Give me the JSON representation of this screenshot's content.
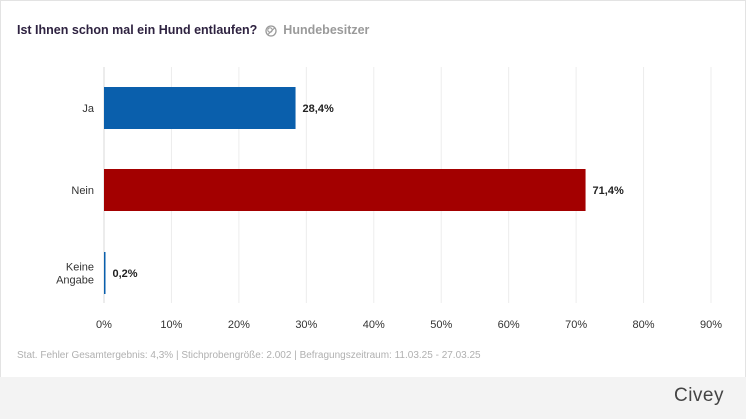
{
  "header": {
    "question": "Ist Ihnen schon mal ein Hund entlaufen?",
    "panel_icon": "panel-filter-icon",
    "panel_label": "Hundebesitzer"
  },
  "chart_data": {
    "type": "bar",
    "orientation": "horizontal",
    "title": "Ist Ihnen schon mal ein Hund entlaufen?",
    "categories": [
      "Ja",
      "Nein",
      "Keine Angabe"
    ],
    "category_lines": [
      [
        "Ja"
      ],
      [
        "Nein"
      ],
      [
        "Keine",
        "Angabe"
      ]
    ],
    "values": [
      28.4,
      71.4,
      0.2
    ],
    "value_labels": [
      "28,4%",
      "71,4%",
      "0,2%"
    ],
    "colors": [
      "#0a5fac",
      "#a30000",
      "#0a5fac"
    ],
    "xlim": [
      0,
      90
    ],
    "xticks": [
      0,
      10,
      20,
      30,
      40,
      50,
      60,
      70,
      80,
      90
    ],
    "xtick_labels": [
      "0%",
      "10%",
      "20%",
      "30%",
      "40%",
      "50%",
      "60%",
      "70%",
      "80%",
      "90%"
    ],
    "xlabel": "",
    "ylabel": "",
    "grid": true,
    "legend": "none"
  },
  "footer": {
    "stats": "Stat. Fehler Gesamtergebnis: 4,3% | Stichprobengröße: 2.002 | Befragungszeitraum: 11.03.25 - 27.03.25",
    "brand": "Civey"
  }
}
